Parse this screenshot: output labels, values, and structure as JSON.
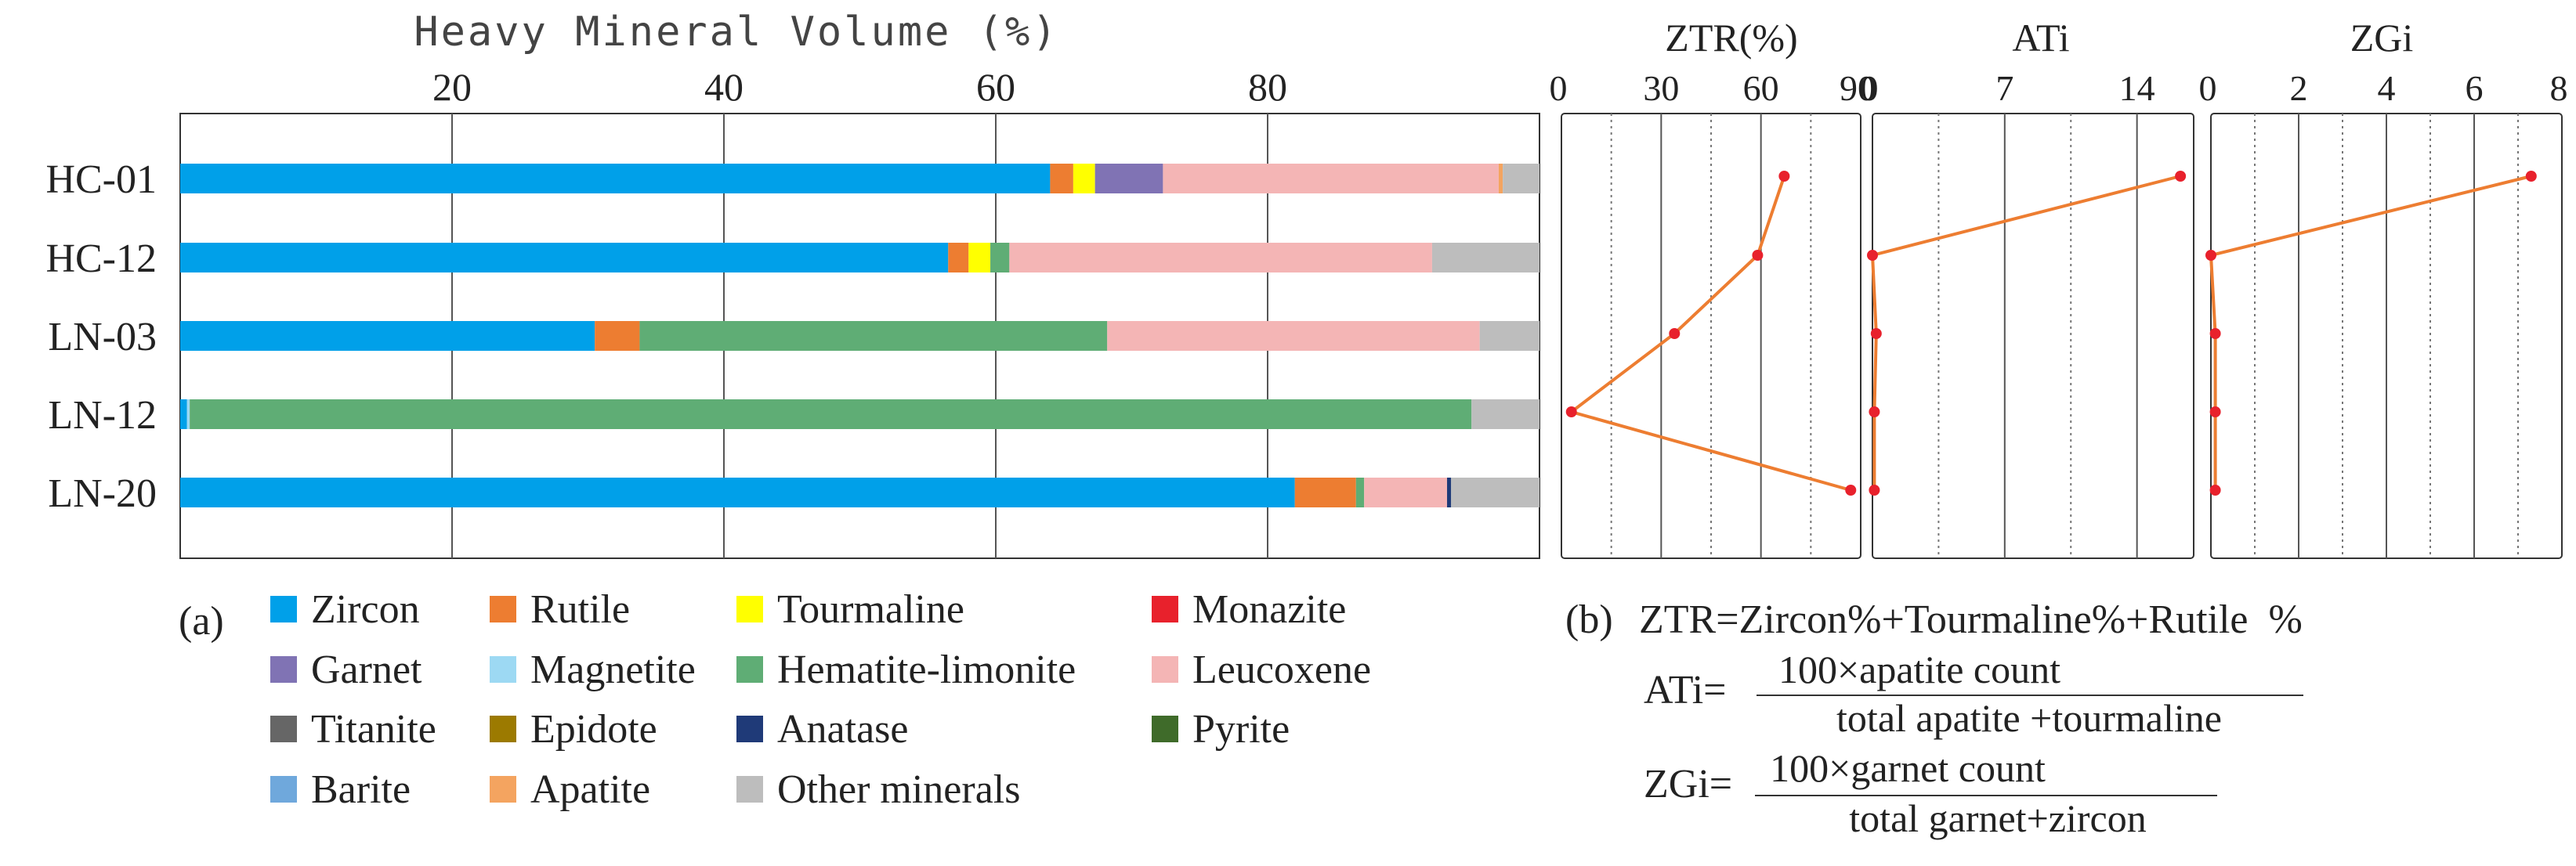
{
  "panel_a": {
    "label": "(a)",
    "x_axis_title": "Heavy Mineral Volume (%)",
    "x_ticks": [
      "20",
      "40",
      "60",
      "80"
    ]
  },
  "panel_b": {
    "label": "(b)",
    "ztr_formula": "ZTR=Zircon%+Tourmaline%+Rutile  %",
    "ati_prefix": "ATi=",
    "ati_numerator": "100×apatite count",
    "ati_denominator": "total apatite +tourmaline",
    "zgi_prefix": "ZGi=",
    "zgi_numerator": "100×garnet count",
    "zgi_denominator": "total garnet+zircon"
  },
  "legend": [
    {
      "name": "Zircon",
      "color": "#00A0E9"
    },
    {
      "name": "Rutile",
      "color": "#ED7D31"
    },
    {
      "name": "Tourmaline",
      "color": "#FFFF00"
    },
    {
      "name": "Monazite",
      "color": "#E8212C"
    },
    {
      "name": "Garnet",
      "color": "#8073B4"
    },
    {
      "name": "Magnetite",
      "color": "#9DD9F3"
    },
    {
      "name": "Hematite-limonite",
      "color": "#5FAD75"
    },
    {
      "name": "Leucoxene",
      "color": "#F4B5B5"
    },
    {
      "name": "Titanite",
      "color": "#666666"
    },
    {
      "name": "Epidote",
      "color": "#9C7A00"
    },
    {
      "name": "Anatase",
      "color": "#1F3A78"
    },
    {
      "name": "Pyrite",
      "color": "#3F6B2A"
    },
    {
      "name": "Barite",
      "color": "#6FA8DC"
    },
    {
      "name": "Apatite",
      "color": "#F4A460"
    },
    {
      "name": "Other minerals",
      "color": "#BDBDBD"
    }
  ],
  "chart_data": [
    {
      "type": "bar",
      "orientation": "horizontal",
      "stacked": true,
      "title": "",
      "xlabel": "Heavy Mineral Volume (%)",
      "xlim": [
        0,
        100
      ],
      "x_ticks": [
        20,
        40,
        60,
        80
      ],
      "categories": [
        "HC-01",
        "HC-12",
        "LN-03",
        "LN-12",
        "LN-20"
      ],
      "series": [
        {
          "name": "Zircon",
          "values": [
            64,
            56.5,
            30.5,
            0.5,
            82
          ]
        },
        {
          "name": "Rutile",
          "values": [
            1.7,
            1.5,
            3.3,
            0,
            4.5
          ]
        },
        {
          "name": "Tourmaline",
          "values": [
            1.6,
            1.6,
            0,
            0,
            0
          ]
        },
        {
          "name": "Monazite",
          "values": [
            0,
            0,
            0,
            0,
            0
          ]
        },
        {
          "name": "Garnet",
          "values": [
            5,
            0,
            0,
            0,
            0
          ]
        },
        {
          "name": "Magnetite",
          "values": [
            0,
            0,
            0,
            0.2,
            0
          ]
        },
        {
          "name": "Hematite-limonite",
          "values": [
            0,
            1.4,
            34.4,
            94.3,
            0.6
          ]
        },
        {
          "name": "Leucoxene",
          "values": [
            24.7,
            31.1,
            27.4,
            0,
            6.1
          ]
        },
        {
          "name": "Titanite",
          "values": [
            0,
            0,
            0,
            0,
            0
          ]
        },
        {
          "name": "Epidote",
          "values": [
            0,
            0,
            0,
            0,
            0
          ]
        },
        {
          "name": "Anatase",
          "values": [
            0,
            0,
            0,
            0,
            0.3
          ]
        },
        {
          "name": "Pyrite",
          "values": [
            0,
            0,
            0,
            0,
            0
          ]
        },
        {
          "name": "Barite",
          "values": [
            0,
            0,
            0,
            0,
            0
          ]
        },
        {
          "name": "Apatite",
          "values": [
            0.3,
            0,
            0,
            0,
            0
          ]
        },
        {
          "name": "Other minerals",
          "values": [
            2.7,
            7.9,
            4.4,
            5,
            6.5
          ]
        }
      ]
    },
    {
      "type": "line",
      "title": "ZTR(%)",
      "xlim": [
        0,
        90
      ],
      "x_ticks": [
        0,
        30,
        60,
        90
      ],
      "categories": [
        "HC-01",
        "HC-12",
        "LN-03",
        "LN-12",
        "LN-20"
      ],
      "values": [
        67,
        59,
        34,
        3,
        87
      ],
      "color": "#ED7D31",
      "marker_color": "#E8212C"
    },
    {
      "type": "line",
      "title": "ATi",
      "xlim": [
        0,
        17
      ],
      "x_ticks": [
        0,
        7,
        14
      ],
      "categories": [
        "HC-01",
        "HC-12",
        "LN-03",
        "LN-12",
        "LN-20"
      ],
      "values": [
        16.3,
        0,
        0.2,
        0.1,
        0.1
      ],
      "color": "#ED7D31",
      "marker_color": "#E8212C"
    },
    {
      "type": "line",
      "title": "ZGi",
      "xlim": [
        0,
        8
      ],
      "x_ticks": [
        0,
        2,
        4,
        6,
        8
      ],
      "categories": [
        "HC-01",
        "HC-12",
        "LN-03",
        "LN-12",
        "LN-20"
      ],
      "values": [
        7.3,
        0,
        0.1,
        0.1,
        0.1
      ],
      "color": "#ED7D31",
      "marker_color": "#E8212C"
    }
  ]
}
